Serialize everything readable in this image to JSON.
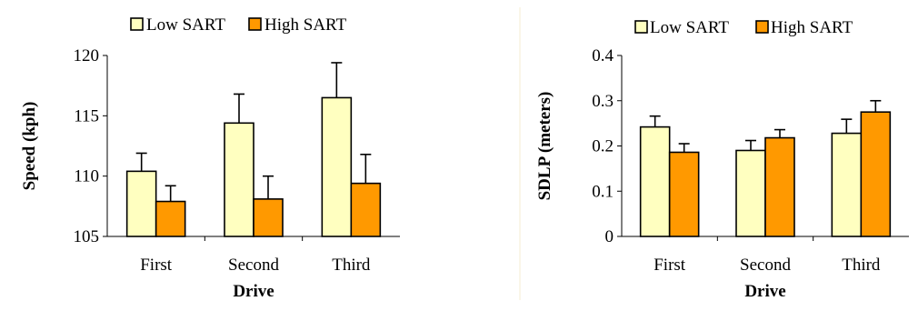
{
  "colors": {
    "low_sart": "#ffffc0",
    "high_sart": "#ff9900",
    "divider": "#f5eed2",
    "outline": "#000000"
  },
  "chart_data": [
    {
      "type": "bar",
      "title": "",
      "xlabel": "Drive",
      "ylabel": "Speed (kph)",
      "categories": [
        "First",
        "Second",
        "Third"
      ],
      "ylim": [
        105,
        120
      ],
      "yticks": [
        "105",
        "110",
        "115",
        "120"
      ],
      "legend": "top",
      "grid": false,
      "series": [
        {
          "name": "Low SART",
          "values": [
            110.4,
            114.4,
            116.5
          ],
          "errors": [
            1.5,
            2.4,
            2.9
          ]
        },
        {
          "name": "High SART",
          "values": [
            107.9,
            108.1,
            109.4
          ],
          "errors": [
            1.3,
            1.9,
            2.4
          ]
        }
      ]
    },
    {
      "type": "bar",
      "title": "",
      "xlabel": "Drive",
      "ylabel": "SDLP (meters)",
      "categories": [
        "First",
        "Second",
        "Third"
      ],
      "ylim": [
        0,
        0.4
      ],
      "yticks": [
        "0",
        "0.1",
        "0.2",
        "0.3",
        "0.4"
      ],
      "legend": "top",
      "grid": false,
      "series": [
        {
          "name": "Low SART",
          "values": [
            0.242,
            0.19,
            0.228
          ],
          "errors": [
            0.024,
            0.022,
            0.031
          ]
        },
        {
          "name": "High SART",
          "values": [
            0.186,
            0.218,
            0.275
          ],
          "errors": [
            0.019,
            0.018,
            0.025
          ]
        }
      ]
    }
  ]
}
